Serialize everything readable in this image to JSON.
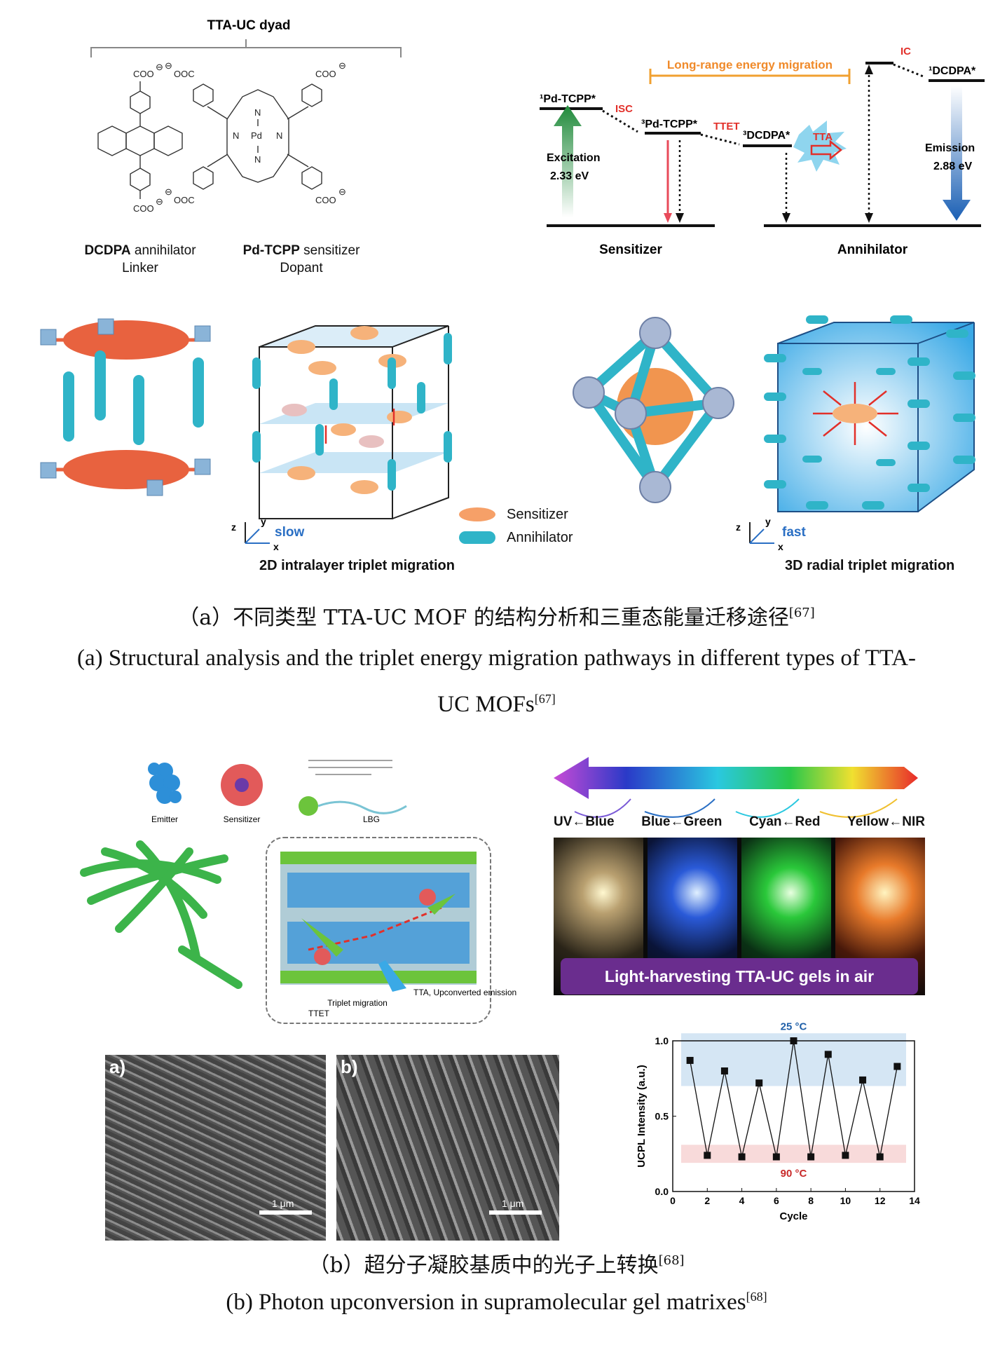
{
  "panel_a": {
    "dyad_title": "TTA-UC dyad",
    "dcdpa": {
      "name": "DCDPA",
      "role": "annihilator",
      "sub": "Linker"
    },
    "pdtcpp": {
      "name": "Pd-TCPP",
      "role": "sensitizer",
      "sub": "Dopant"
    },
    "chem_labels": {
      "coo": "COO",
      "ooc": "OOC",
      "minus": "⊖",
      "pd": "Pd",
      "n": "N"
    },
    "energy": {
      "long_range": "Long-range energy migration",
      "pd1": "¹Pd-TCPP*",
      "isc": "ISC",
      "pd3": "³Pd-TCPP*",
      "ttet": "TTET",
      "dcdpa3": "³DCDPA*",
      "tta": "TTA",
      "ic": "IC",
      "dcdpa1": "¹DCDPA*",
      "excitation": "Excitation",
      "excitation_ev": "2.33 eV",
      "emission": "Emission",
      "emission_ev": "2.88 eV",
      "sensitizer": "Sensitizer",
      "annihilator": "Annihilator"
    },
    "legend": {
      "sensitizer": "Sensitizer",
      "annihilator": "Annihilator"
    },
    "axes2d": {
      "z": "z",
      "y": "y",
      "x": "x",
      "speed": "slow"
    },
    "axes3d": {
      "z": "z",
      "y": "y",
      "x": "x",
      "speed": "fast"
    },
    "label_2d": "2D intralayer triplet migration",
    "label_3d": "3D radial triplet migration",
    "caption_cn": "（a）不同类型 TTA-UC MOF 的结构分析和三重态能量迁移途径",
    "caption_cn_ref": "[67]",
    "caption_en": "(a) Structural analysis and the triplet energy migration pathways in different types of TTA-",
    "caption_en_2": "UC MOFs",
    "caption_en_ref": "[67]"
  },
  "panel_b": {
    "emitter": "Emitter",
    "sensitizer": "Sensitizer",
    "lbg": "LBG",
    "ttet": "TTET",
    "triplet_migration": "Triplet\nmigration",
    "tta_emission": "TTA,\nUpconverted\nemission",
    "conversions": [
      "UV←Blue",
      "Blue←Green",
      "Cyan←Red",
      "Yellow←NIR"
    ],
    "banner": "Light-harvesting TTA-UC gels in air",
    "sem_a": "a)",
    "sem_b": "b)",
    "scale": "1 μm",
    "caption_cn": "（b）超分子凝胶基质中的光子上转换",
    "caption_cn_ref": "[68]",
    "caption_en": "(b) Photon upconversion in supramolecular gel matrixes",
    "caption_en_ref": "[68]"
  },
  "chart_data": {
    "type": "line",
    "xlabel": "Cycle",
    "ylabel": "UCPL Intensity (a.u.)",
    "xlim": [
      0,
      14
    ],
    "ylim": [
      0,
      1.0
    ],
    "xticks": [
      "0",
      "2",
      "4",
      "6",
      "8",
      "10",
      "12",
      "14"
    ],
    "yticks": [
      "0.0",
      "0.5",
      "1.0"
    ],
    "x": [
      1,
      2,
      3,
      4,
      5,
      6,
      7,
      8,
      9,
      10,
      11,
      12,
      13
    ],
    "y": [
      0.87,
      0.24,
      0.8,
      0.23,
      0.72,
      0.23,
      1.0,
      0.23,
      0.91,
      0.24,
      0.74,
      0.23,
      0.83
    ],
    "band_high": {
      "label": "25 °C",
      "range": [
        0.7,
        1.05
      ],
      "color": "#d5e6f4"
    },
    "band_low": {
      "label": "90 °C",
      "range": [
        0.19,
        0.31
      ],
      "color": "#f8dada"
    }
  },
  "colors": {
    "orange": "#f08a3c",
    "red": "#e2302a",
    "cyan": "#2fb4c8",
    "blue": "#2a6fc4",
    "green": "#2a9a3e",
    "purple": "#6a2d8e"
  }
}
